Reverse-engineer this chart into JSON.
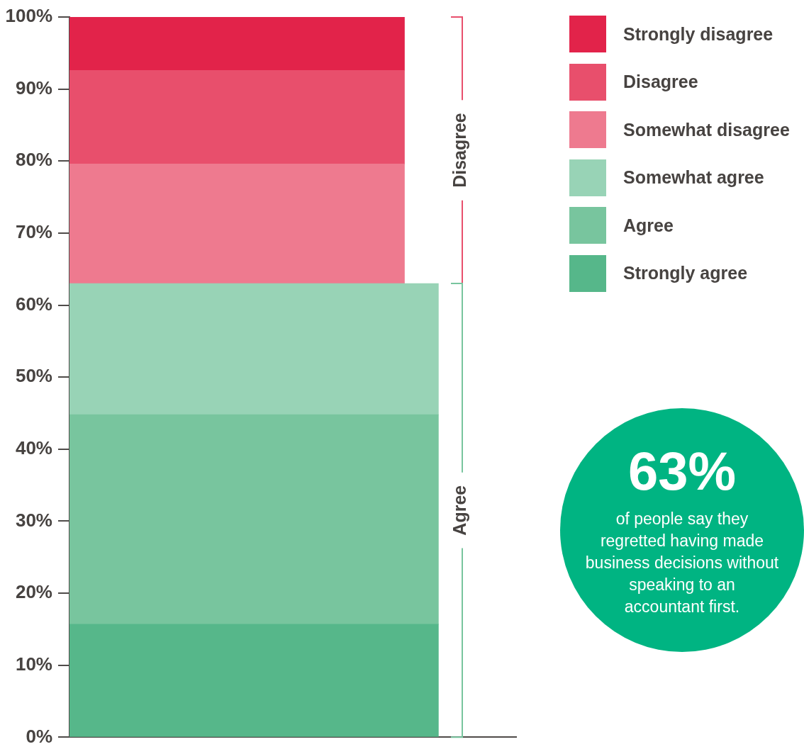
{
  "chart_data": {
    "type": "bar",
    "stacked": true,
    "categories": [
      null
    ],
    "series": [
      {
        "name": "Strongly agree",
        "color": "#56b78a",
        "values": [
          15.7
        ]
      },
      {
        "name": "Agree",
        "color": "#78c59e",
        "values": [
          29.1
        ]
      },
      {
        "name": "Somewhat agree",
        "color": "#98d3b6",
        "values": [
          18.2
        ]
      },
      {
        "name": "Somewhat disagree",
        "color": "#ee7a8f",
        "values": [
          16.6
        ]
      },
      {
        "name": "Disagree",
        "color": "#e84f6c",
        "values": [
          13.0
        ]
      },
      {
        "name": "Strongly disagree",
        "color": "#e2234a",
        "values": [
          7.4
        ]
      }
    ],
    "ylim": [
      0,
      100
    ],
    "yticks": [
      {
        "value": 0,
        "label": "0%"
      },
      {
        "value": 10,
        "label": "10%"
      },
      {
        "value": 20,
        "label": "20%"
      },
      {
        "value": 30,
        "label": "30%"
      },
      {
        "value": 40,
        "label": "40%"
      },
      {
        "value": 50,
        "label": "50%"
      },
      {
        "value": 60,
        "label": "60%"
      },
      {
        "value": 70,
        "label": "70%"
      },
      {
        "value": 80,
        "label": "80%"
      },
      {
        "value": 90,
        "label": "90%"
      },
      {
        "value": 100,
        "label": "100%"
      }
    ],
    "tick_labels": "y",
    "legend": "top right",
    "annotations": [
      "Disagree",
      "Agree",
      "63%",
      "of people say they\nregretted having made\nbusiness decisions without\nspeaking to an\naccountant first."
    ]
  }
}
